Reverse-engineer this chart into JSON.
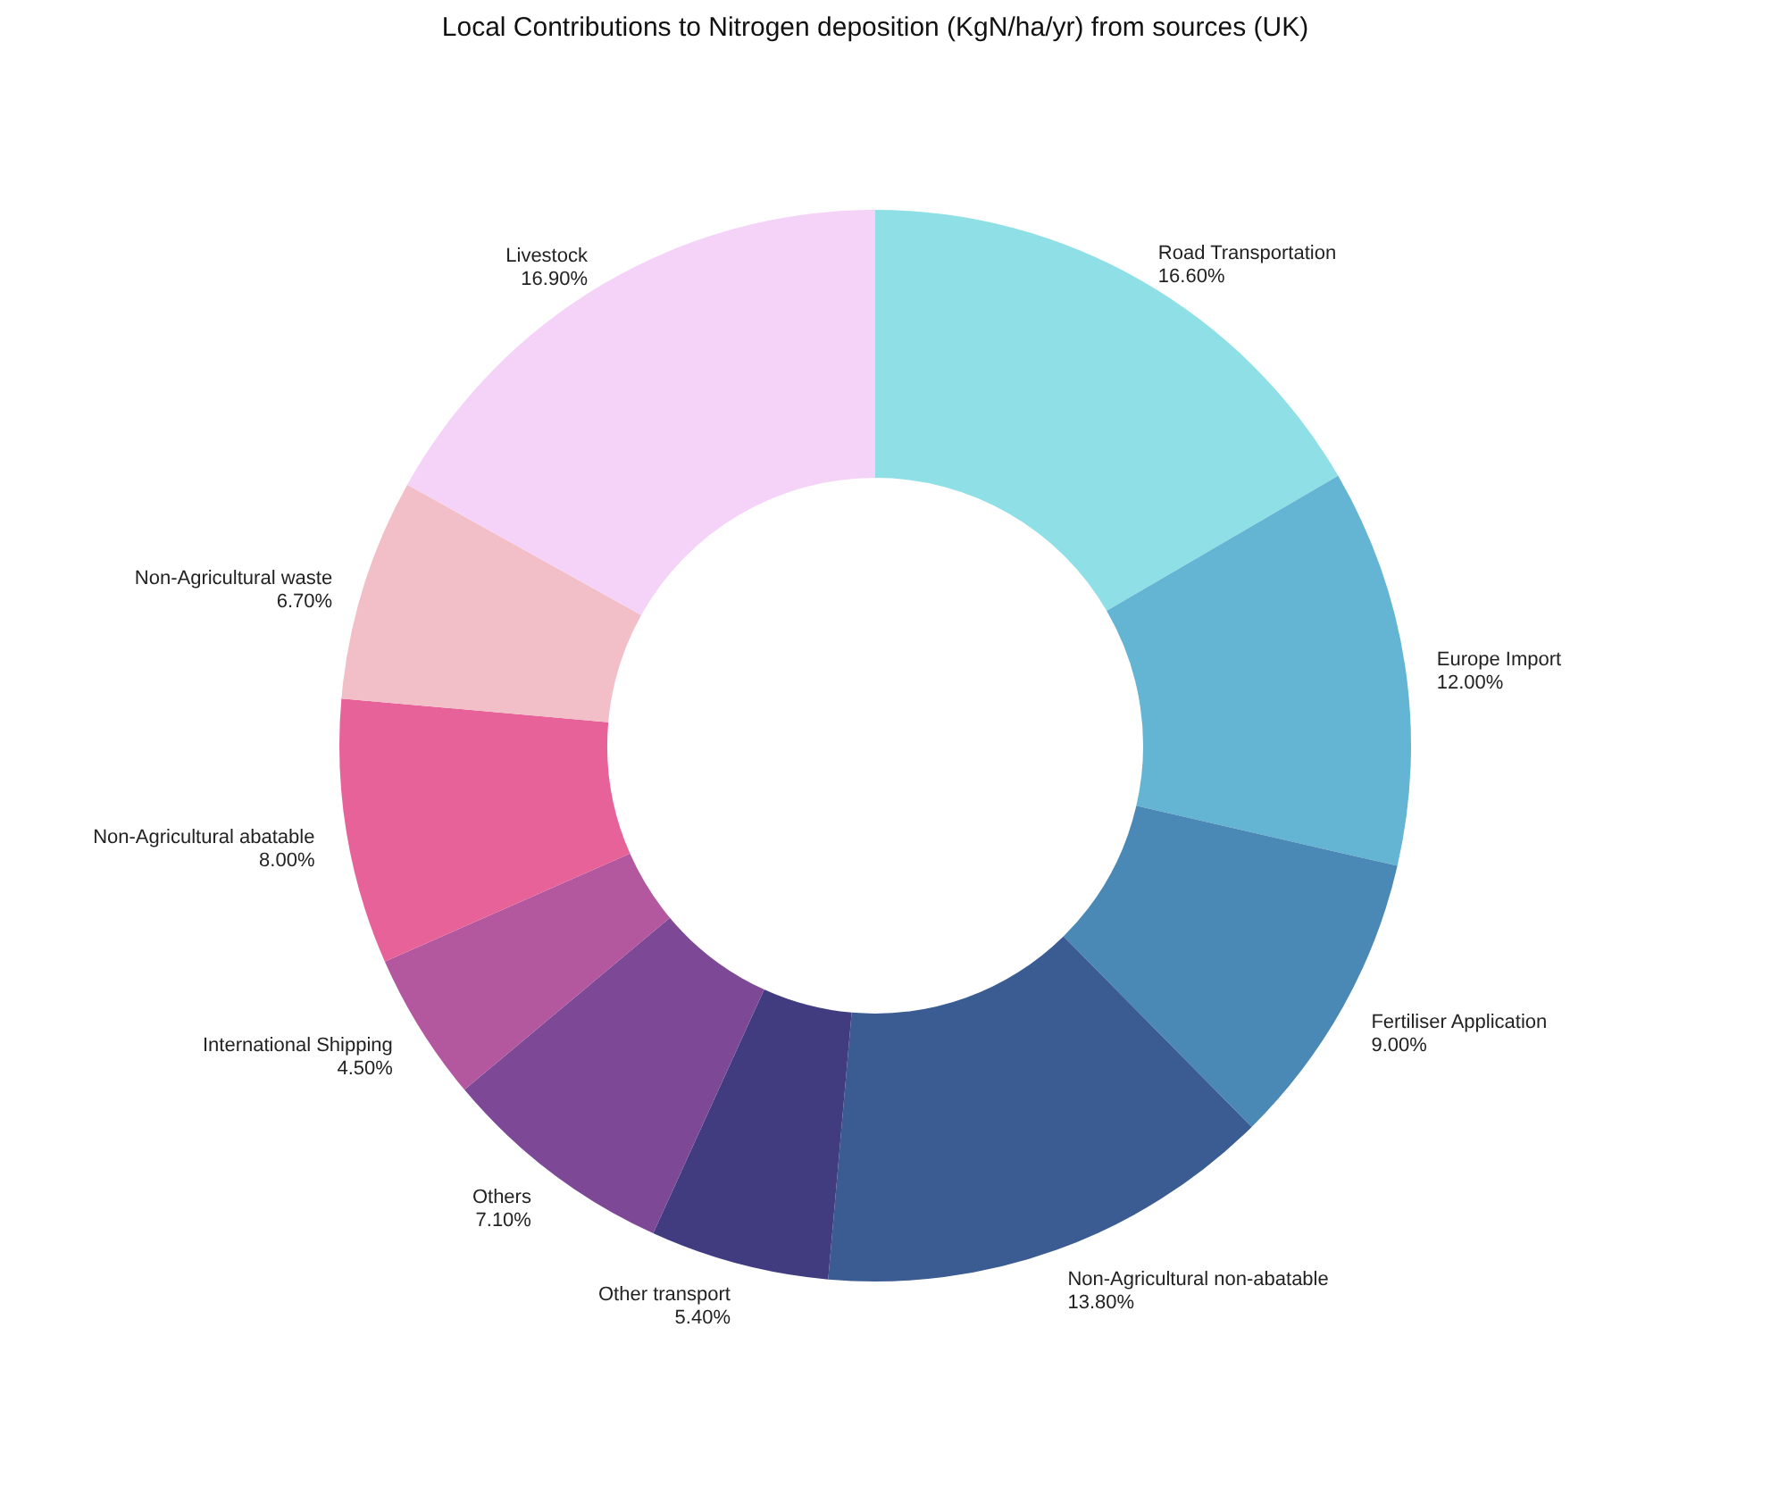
{
  "chart_data": {
    "type": "donut",
    "title": "Local Contributions to Nitrogen deposition (KgN/ha/yr) from sources (UK)",
    "categories": [
      "Road Transportation",
      "Europe Import",
      "Fertiliser Application",
      "Non-Agricultural non-abatable",
      "Other transport",
      "Others",
      "International Shipping",
      "Non-Agricultural abatable",
      "Non-Agricultural waste",
      "Livestock"
    ],
    "values": [
      16.6,
      12.0,
      9.0,
      13.8,
      5.4,
      7.1,
      4.5,
      8.0,
      6.7,
      16.9
    ],
    "value_labels": [
      "16.60%",
      "12.00%",
      "9.00%",
      "13.80%",
      "5.40%",
      "7.10%",
      "4.50%",
      "8.00%",
      "6.70%",
      "16.90%"
    ],
    "colors": [
      "#8ee0e6",
      "#64b4d4",
      "#4a88b5",
      "#3a5c92",
      "#413c80",
      "#7d4895",
      "#b3579f",
      "#e8629a",
      "#f2bfc8",
      "#f5d3f8"
    ]
  }
}
